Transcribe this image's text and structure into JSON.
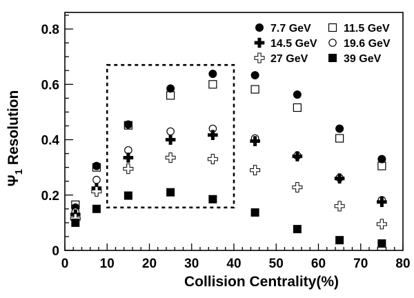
{
  "chart_data": {
    "type": "scatter",
    "xlabel": "Collision Centrality(%)",
    "ylabel": "Ψ",
    "ylabel_subscript": "1",
    "ylabel_suffix": " Resolution",
    "xlim": [
      0,
      80
    ],
    "ylim": [
      0,
      0.86
    ],
    "x_ticks": [
      0,
      10,
      20,
      30,
      40,
      50,
      60,
      70,
      80
    ],
    "x_tick_labels": [
      "0",
      "10",
      "20",
      "30",
      "40",
      "50",
      "60",
      "70",
      "80"
    ],
    "y_ticks": [
      0,
      0.2,
      0.4,
      0.6,
      0.8
    ],
    "y_tick_labels": [
      "0",
      "0.2",
      "0.4",
      "0.6",
      "0.8"
    ],
    "grid": false,
    "legend_position": "top-right",
    "highlight_box": {
      "x": [
        10,
        40
      ],
      "y": [
        0.155,
        0.67
      ],
      "style": "dashed"
    },
    "series": [
      {
        "name": "7.7 GeV",
        "marker": "filled-circle",
        "x": [
          2.5,
          7.5,
          15,
          25,
          35,
          45,
          55,
          65,
          75
        ],
        "values": [
          0.155,
          0.305,
          0.455,
          0.585,
          0.638,
          0.633,
          0.563,
          0.44,
          0.33
        ]
      },
      {
        "name": "11.5 GeV",
        "marker": "open-square",
        "x": [
          2.5,
          7.5,
          15,
          25,
          35,
          45,
          55,
          65,
          75
        ],
        "values": [
          0.165,
          0.3,
          0.452,
          0.56,
          0.6,
          0.582,
          0.516,
          0.405,
          0.305
        ]
      },
      {
        "name": "14.5 GeV",
        "marker": "filled-cross",
        "x": [
          2.5,
          7.5,
          15,
          25,
          35,
          45,
          55,
          65,
          75
        ],
        "values": [
          0.13,
          0.225,
          0.335,
          0.4,
          0.417,
          0.395,
          0.34,
          0.26,
          0.175
        ]
      },
      {
        "name": "19.6 GeV",
        "marker": "open-circle",
        "x": [
          2.5,
          7.5,
          15,
          25,
          35,
          45,
          55,
          65,
          75
        ],
        "values": [
          0.14,
          0.255,
          0.362,
          0.43,
          0.44,
          0.405,
          0.342,
          0.262,
          0.182
        ]
      },
      {
        "name": "27 GeV",
        "marker": "open-cross",
        "x": [
          2.5,
          7.5,
          15,
          25,
          35,
          45,
          55,
          65,
          75
        ],
        "values": [
          0.115,
          0.213,
          0.295,
          0.335,
          0.33,
          0.29,
          0.228,
          0.16,
          0.095
        ]
      },
      {
        "name": "39 GeV",
        "marker": "filled-square",
        "x": [
          2.5,
          7.5,
          15,
          25,
          35,
          45,
          55,
          65,
          75
        ],
        "values": [
          0.1,
          0.15,
          0.198,
          0.21,
          0.185,
          0.137,
          0.077,
          0.037,
          0.025
        ]
      }
    ]
  }
}
